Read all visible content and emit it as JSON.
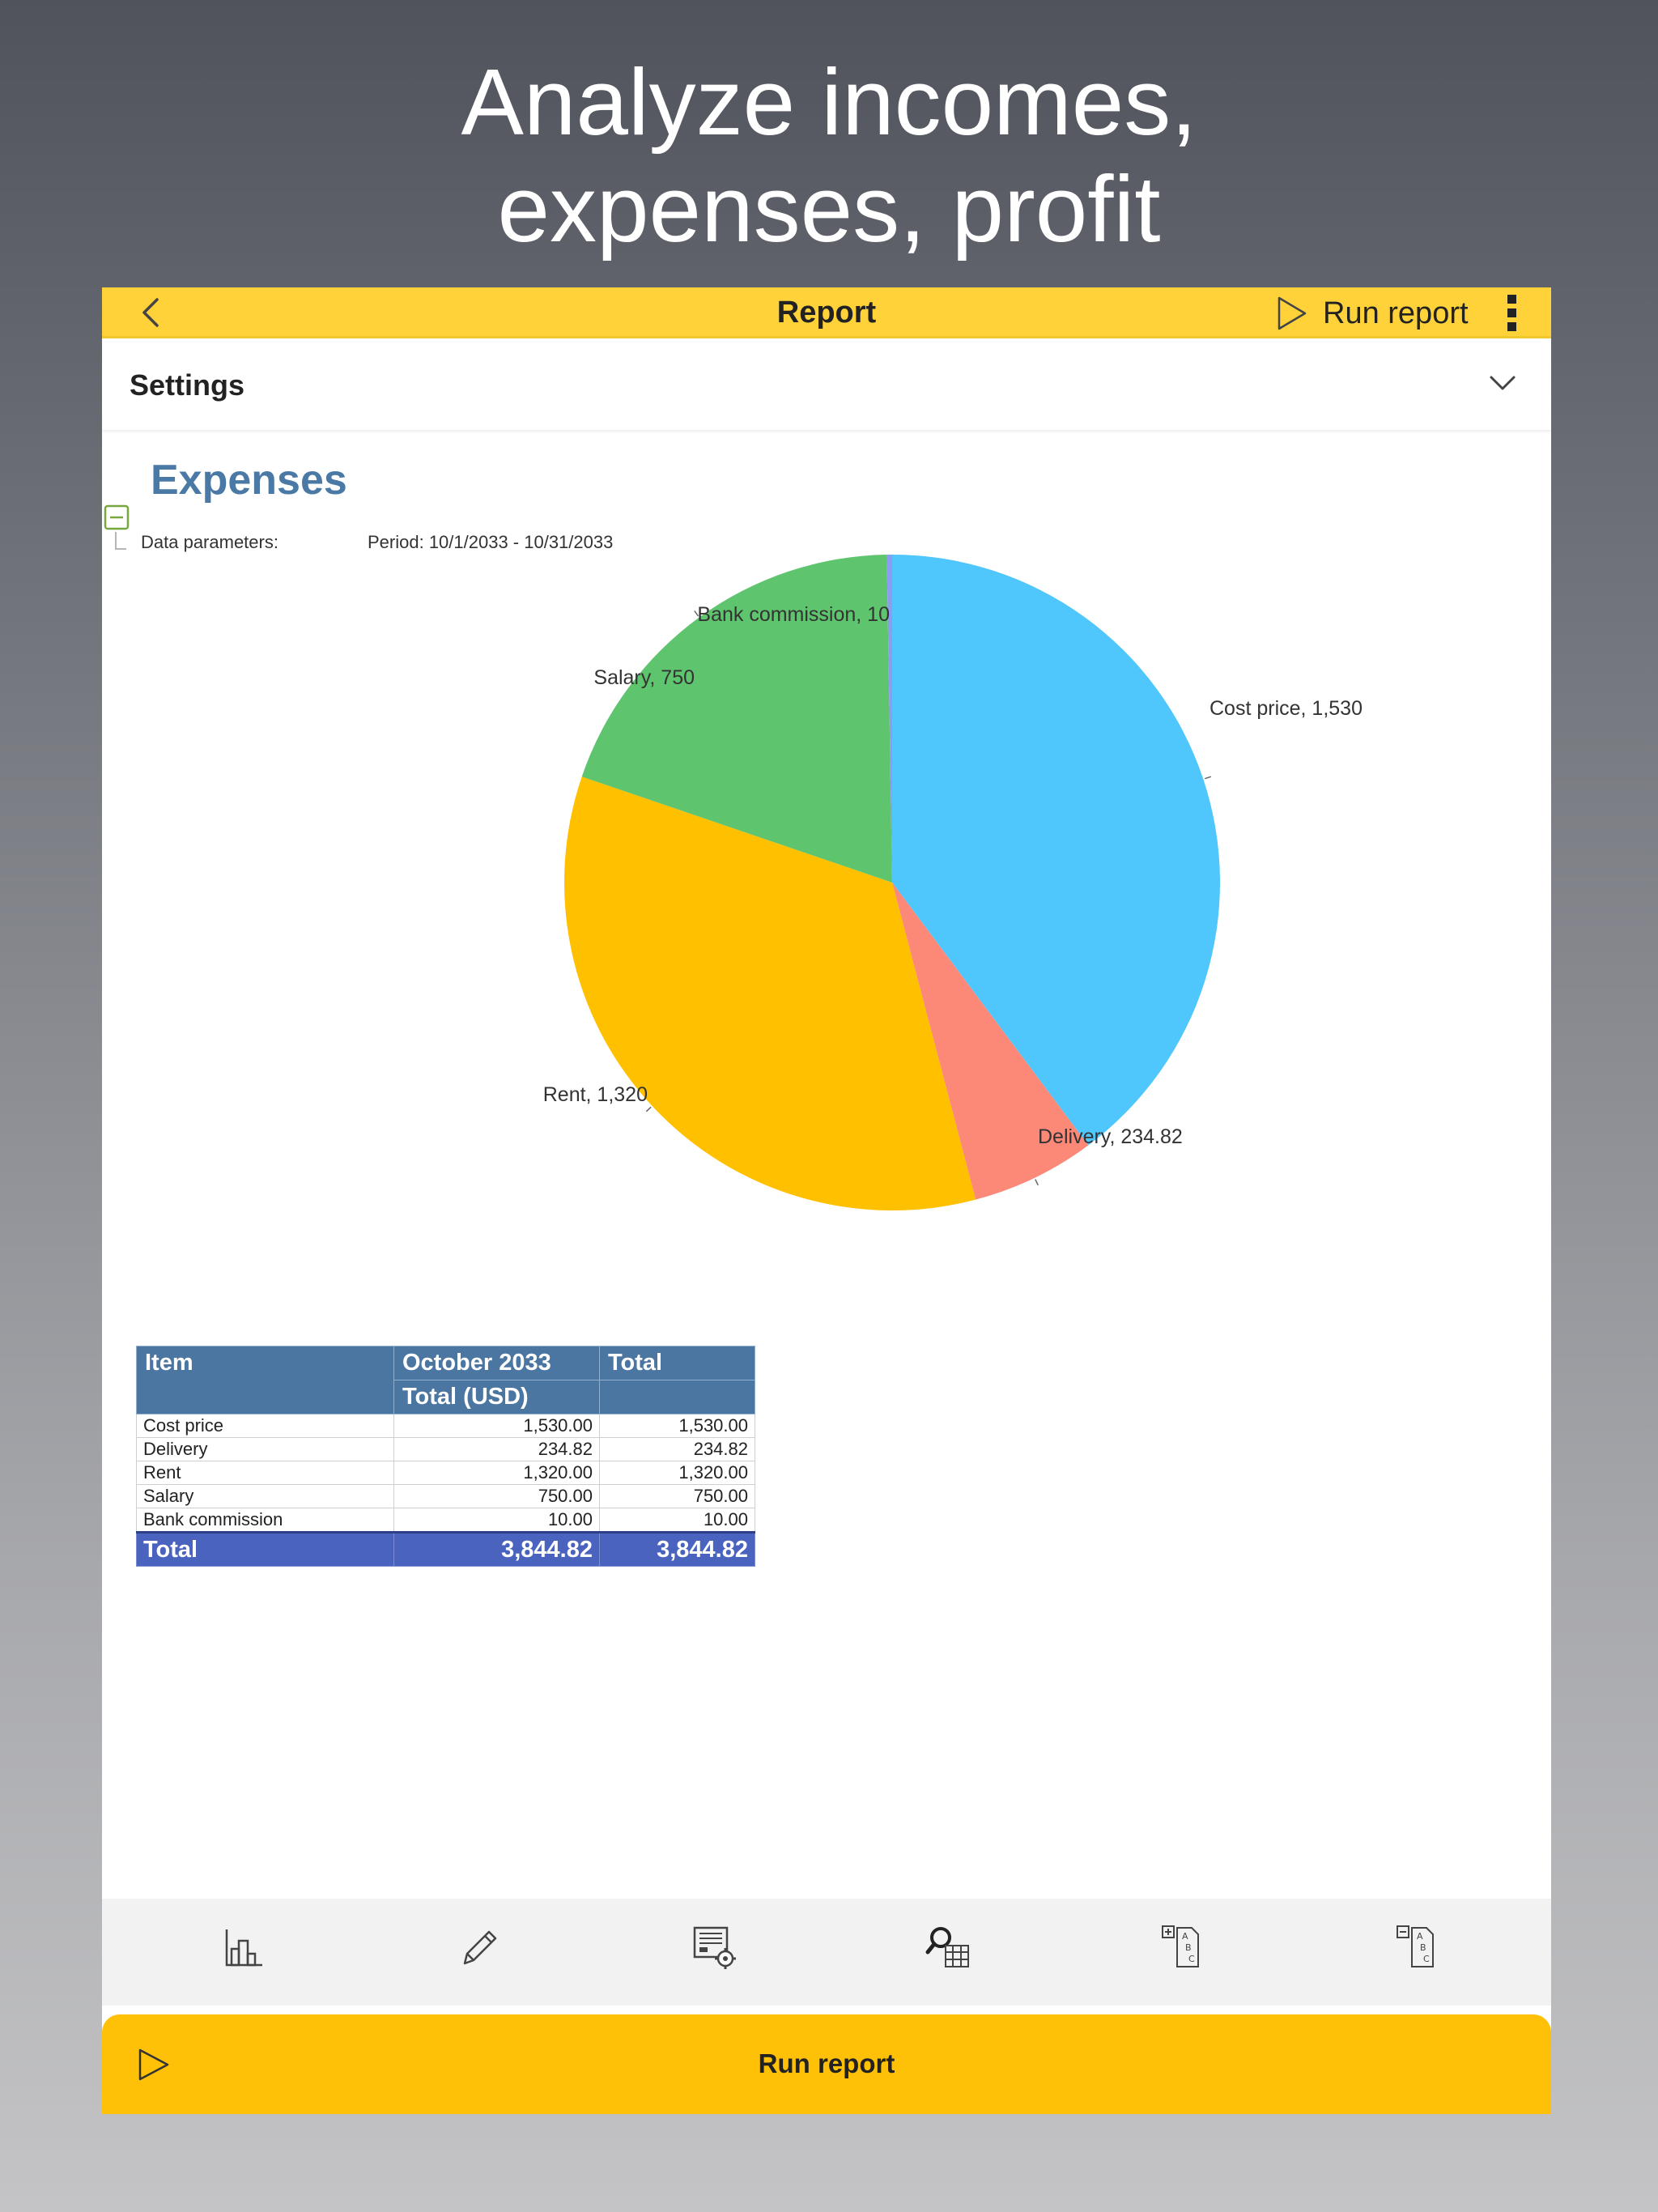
{
  "headline": {
    "line1": "Analyze incomes,",
    "line2": "expenses, profit"
  },
  "topbar": {
    "title": "Report",
    "run_label": "Run report",
    "back_icon": "chevron-left-icon",
    "more_icon": "more-vertical-icon",
    "color": "#ffd23a"
  },
  "settings": {
    "label": "Settings",
    "icon": "chevron-down-icon"
  },
  "report": {
    "title": "Expenses",
    "param_label": "Data parameters:",
    "param_value": "Period: 10/1/2033 - 10/31/2033"
  },
  "chart_data": {
    "type": "pie",
    "title": "",
    "slices": [
      {
        "label": "Cost price, 1,530",
        "name": "Cost price",
        "value": 1530,
        "color": "#4fc6fc"
      },
      {
        "label": "Delivery, 234.82",
        "name": "Delivery",
        "value": 234.82,
        "color": "#fc8878"
      },
      {
        "label": "Rent, 1,320",
        "name": "Rent",
        "value": 1320,
        "color": "#ffc000"
      },
      {
        "label": "Salary, 750",
        "name": "Salary",
        "value": 750,
        "color": "#5fc46e"
      },
      {
        "label": "Bank commission, 10",
        "name": "Bank commission",
        "value": 10,
        "color": "#8a9df0"
      }
    ]
  },
  "table": {
    "headers": {
      "item": "Item",
      "period": "October 2033",
      "total": "Total",
      "sub_period": "Total (USD)",
      "sub_total": ""
    },
    "rows": [
      {
        "item": "Cost price",
        "period": "1,530.00",
        "total": "1,530.00"
      },
      {
        "item": "Delivery",
        "period": "234.82",
        "total": "234.82"
      },
      {
        "item": "Rent",
        "period": "1,320.00",
        "total": "1,320.00"
      },
      {
        "item": "Salary",
        "period": "750.00",
        "total": "750.00"
      },
      {
        "item": "Bank commission",
        "period": "10.00",
        "total": "10.00"
      }
    ],
    "total": {
      "item": "Total",
      "period": "3,844.82",
      "total": "3,844.82"
    }
  },
  "toolbar": {
    "icons": [
      "chart-icon",
      "edit-pencil-icon",
      "report-settings-icon",
      "search-table-icon",
      "expand-groups-icon",
      "collapse-groups-icon"
    ]
  },
  "run_button": {
    "label": "Run report",
    "icon": "play-icon",
    "color": "#ffc107"
  }
}
